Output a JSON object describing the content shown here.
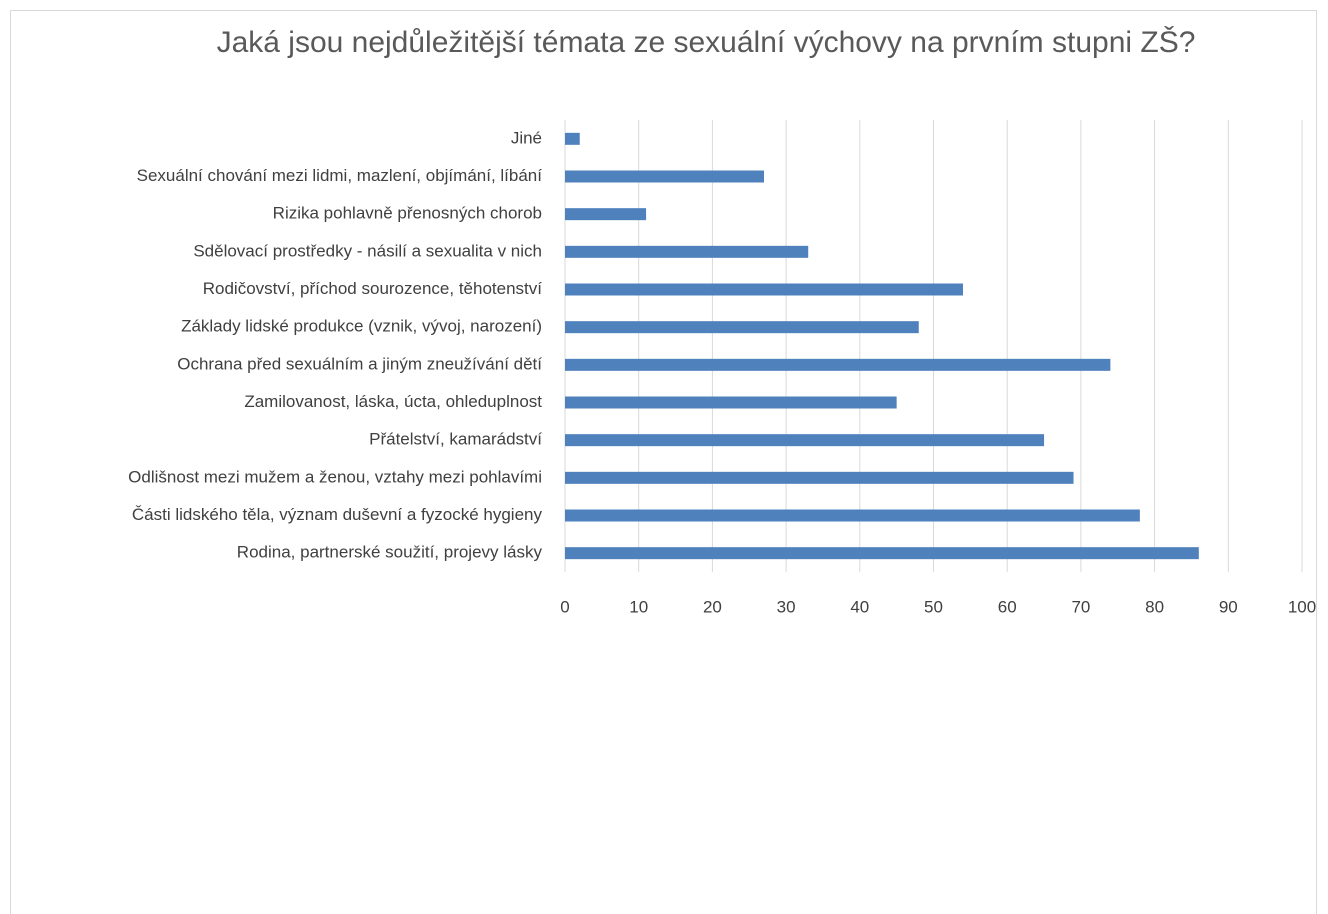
{
  "chart_data": {
    "type": "bar",
    "orientation": "horizontal",
    "title": "Jaká jsou nejdůležitější témata ze sexuální výchovy na prvním stupni ZŠ?",
    "categories": [
      "Rodina, partnerské soužití, projevy lásky",
      "Části lidského těla, význam duševní a fyzocké hygieny",
      "Odlišnost mezi mužem a ženou, vztahy mezi pohlavími",
      "Přátelství, kamarádství",
      "Zamilovanost, láska, úcta, ohleduplnost",
      "Ochrana před sexuálním a jiným zneužívání dětí",
      "Základy lidské produkce (vznik, vývoj, narození)",
      "Rodičovství, příchod sourozence, těhotenství",
      "Sdělovací prostředky  - násilí a sexualita v nich",
      "Rizika pohlavně přenosných chorob",
      "Sexuální chování mezi lidmi, mazlení, objímání, líbání",
      "Jiné"
    ],
    "values": [
      86,
      78,
      69,
      65,
      45,
      74,
      48,
      54,
      33,
      11,
      27,
      2
    ],
    "color": "#4f81bd",
    "xlim": [
      0,
      100
    ],
    "xticks": [
      0,
      10,
      20,
      30,
      40,
      50,
      60,
      70,
      80,
      90,
      100
    ],
    "grid": true
  }
}
